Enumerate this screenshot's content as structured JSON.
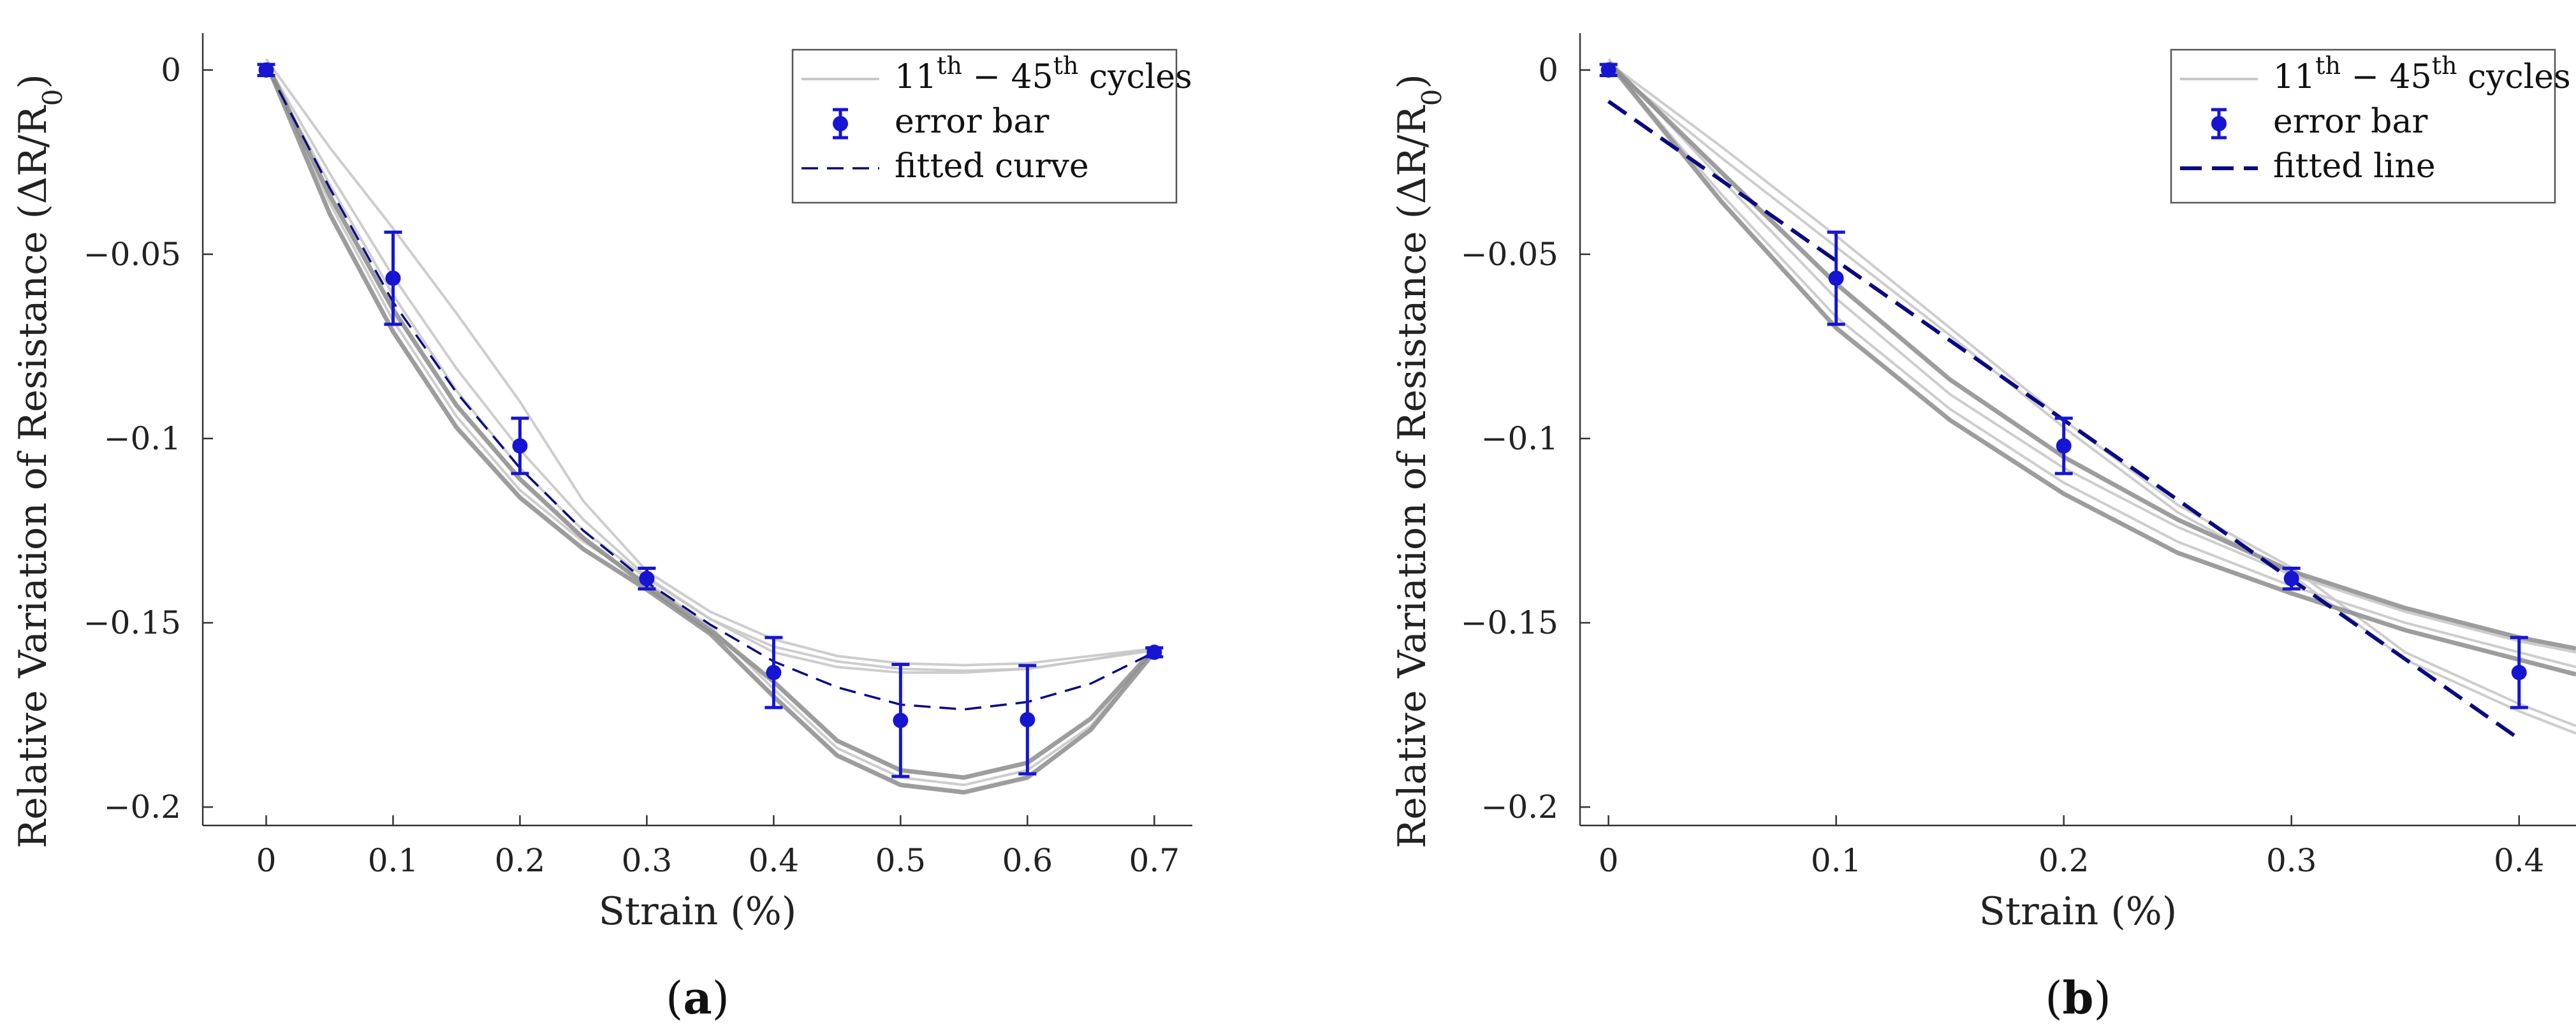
{
  "chart_data": [
    {
      "type": "line",
      "panel": "a",
      "panel_label": "a",
      "xlabel": "Strain (%)",
      "ylabel": "Relative Variation of Resistance (ΔR/R",
      "ylabel_sub": "0",
      "ylabel_close": ")",
      "xlim": [
        -0.05,
        0.73
      ],
      "ylim": [
        -0.205,
        0.01
      ],
      "xticks": [
        0,
        0.1,
        0.2,
        0.3,
        0.4,
        0.5,
        0.6,
        0.7
      ],
      "xtick_labels": [
        "0",
        "0.1",
        "0.2",
        "0.3",
        "0.4",
        "0.5",
        "0.6",
        "0.7"
      ],
      "yticks": [
        0,
        -0.05,
        -0.1,
        -0.15,
        -0.2
      ],
      "ytick_labels": [
        "0",
        "−0.05",
        "−0.1",
        "−0.15",
        "−0.2"
      ],
      "legend": {
        "position": "top-right",
        "cycles": {
          "pre": "11",
          "pre_sup": "th",
          "mid": " − 45",
          "mid_sup": "th",
          "post": " cycles"
        },
        "error_bar": "error bar",
        "fitted": "fitted curve"
      },
      "colors": {
        "cycles": "#c8c8c8",
        "cycles_dark": "#8c8c8c",
        "marker": "#1515d2",
        "fit": "#0a0a80"
      },
      "series": [
        {
          "name": "error bar",
          "x": [
            0,
            0.1,
            0.2,
            0.3,
            0.4,
            0.5,
            0.6,
            0.7
          ],
          "y": [
            0,
            -0.0565,
            -0.102,
            -0.138,
            -0.1635,
            -0.1765,
            -0.1763,
            -0.158
          ],
          "err": [
            0.0015,
            0.0125,
            0.0075,
            0.0028,
            0.0095,
            0.0152,
            0.0147,
            0.0012
          ]
        },
        {
          "name": "fitted curve",
          "style": "dashed",
          "x": [
            0.01,
            0.05,
            0.1,
            0.15,
            0.2,
            0.25,
            0.3,
            0.35,
            0.4,
            0.45,
            0.5,
            0.55,
            0.6,
            0.65,
            0.7
          ],
          "y": [
            -0.0055,
            -0.032,
            -0.063,
            -0.0875,
            -0.108,
            -0.125,
            -0.139,
            -0.1505,
            -0.1605,
            -0.1675,
            -0.1722,
            -0.1735,
            -0.1715,
            -0.1665,
            -0.158
          ]
        },
        {
          "name": "11th – 45th cycles",
          "curves": [
            {
              "x": [
                0,
                0.05,
                0.1,
                0.15,
                0.2,
                0.25,
                0.3,
                0.35,
                0.4,
                0.45,
                0.5,
                0.55,
                0.6,
                0.65,
                0.7
              ],
              "y": [
                0.002,
                -0.028,
                -0.056,
                -0.081,
                -0.103,
                -0.122,
                -0.1375,
                -0.149,
                -0.1565,
                -0.1605,
                -0.1625,
                -0.163,
                -0.1625,
                -0.16,
                -0.157
              ]
            },
            {
              "x": [
                0,
                0.05,
                0.1,
                0.15,
                0.2,
                0.25,
                0.3,
                0.35,
                0.4,
                0.45,
                0.5,
                0.55,
                0.6,
                0.65,
                0.7
              ],
              "y": [
                0.002,
                -0.036,
                -0.068,
                -0.094,
                -0.114,
                -0.128,
                -0.139,
                -0.151,
                -0.168,
                -0.184,
                -0.192,
                -0.194,
                -0.19,
                -0.178,
                -0.157
              ]
            },
            {
              "x": [
                0,
                0.05,
                0.1,
                0.15,
                0.2,
                0.25,
                0.3,
                0.35,
                0.4,
                0.45,
                0.5,
                0.55,
                0.6,
                0.65,
                0.7
              ],
              "y": [
                0.003,
                -0.021,
                -0.043,
                -0.066,
                -0.09,
                -0.117,
                -0.136,
                -0.147,
                -0.1545,
                -0.159,
                -0.161,
                -0.1615,
                -0.161,
                -0.159,
                -0.157
              ]
            },
            {
              "x": [
                0,
                0.05,
                0.1,
                0.15,
                0.2,
                0.25,
                0.3,
                0.35,
                0.4,
                0.45,
                0.5,
                0.55,
                0.6,
                0.65,
                0.7
              ],
              "y": [
                0.001,
                -0.031,
                -0.061,
                -0.087,
                -0.108,
                -0.125,
                -0.138,
                -0.149,
                -0.158,
                -0.162,
                -0.1635,
                -0.1635,
                -0.1625,
                -0.16,
                -0.1575
              ]
            },
            {
              "x": [
                0,
                0.05,
                0.1,
                0.15,
                0.2,
                0.25,
                0.3,
                0.35,
                0.4,
                0.45,
                0.5,
                0.55,
                0.6,
                0.65,
                0.7
              ],
              "y": [
                0.002,
                -0.039,
                -0.071,
                -0.097,
                -0.116,
                -0.13,
                -0.141,
                -0.153,
                -0.17,
                -0.186,
                -0.194,
                -0.196,
                -0.192,
                -0.179,
                -0.158
              ]
            },
            {
              "x": [
                0,
                0.05,
                0.1,
                0.15,
                0.2,
                0.25,
                0.3,
                0.35,
                0.4,
                0.45,
                0.5,
                0.55,
                0.6,
                0.65,
                0.7
              ],
              "y": [
                0.002,
                -0.034,
                -0.065,
                -0.091,
                -0.111,
                -0.127,
                -0.14,
                -0.152,
                -0.166,
                -0.182,
                -0.19,
                -0.192,
                -0.188,
                -0.176,
                -0.157
              ]
            }
          ]
        }
      ]
    },
    {
      "type": "line",
      "panel": "b",
      "panel_label": "b",
      "xlabel": "Strain (%)",
      "ylabel": "Relative Variation of Resistance (ΔR/R",
      "ylabel_sub": "0",
      "ylabel_close": ")",
      "xlim": [
        -0.0125,
        0.425
      ],
      "ylim": [
        -0.205,
        0.01
      ],
      "xticks": [
        0,
        0.1,
        0.2,
        0.3,
        0.4
      ],
      "xtick_labels": [
        "0",
        "0.1",
        "0.2",
        "0.3",
        "0.4"
      ],
      "yticks": [
        0,
        -0.05,
        -0.1,
        -0.15,
        -0.2
      ],
      "ytick_labels": [
        "0",
        "−0.05",
        "−0.1",
        "−0.15",
        "−0.2"
      ],
      "legend": {
        "position": "top-right",
        "cycles": {
          "pre": "11",
          "pre_sup": "th",
          "mid": " − 45",
          "mid_sup": "th",
          "post": " cycles"
        },
        "error_bar": "error bar",
        "fitted": "fitted line"
      },
      "colors": {
        "cycles": "#c8c8c8",
        "cycles_dark": "#8c8c8c",
        "marker": "#1515d2",
        "fit": "#0a0a80"
      },
      "series": [
        {
          "name": "error bar",
          "x": [
            0,
            0.1,
            0.2,
            0.3,
            0.4
          ],
          "y": [
            0,
            -0.0565,
            -0.102,
            -0.138,
            -0.1635
          ],
          "err": [
            0.0015,
            0.0125,
            0.0075,
            0.0028,
            0.0095
          ]
        },
        {
          "name": "fitted line",
          "style": "dashed",
          "x": [
            0,
            0.4
          ],
          "y": [
            -0.0085,
            -0.1815
          ]
        },
        {
          "name": "11th – 45th cycles",
          "curves": [
            {
              "x": [
                0,
                0.05,
                0.1,
                0.15,
                0.2,
                0.25,
                0.3,
                0.35,
                0.4,
                0.425
              ],
              "y": [
                0.002,
                -0.021,
                -0.045,
                -0.07,
                -0.095,
                -0.118,
                -0.135,
                -0.158,
                -0.172,
                -0.178
              ]
            },
            {
              "x": [
                0,
                0.05,
                0.1,
                0.15,
                0.2,
                0.25,
                0.3,
                0.35,
                0.4,
                0.425
              ],
              "y": [
                0.002,
                -0.034,
                -0.067,
                -0.092,
                -0.112,
                -0.128,
                -0.14,
                -0.15,
                -0.158,
                -0.162
              ]
            },
            {
              "x": [
                0,
                0.05,
                0.1,
                0.15,
                0.2,
                0.25,
                0.3,
                0.35,
                0.4,
                0.425
              ],
              "y": [
                0.003,
                -0.03,
                -0.062,
                -0.088,
                -0.108,
                -0.124,
                -0.137,
                -0.147,
                -0.155,
                -0.158
              ]
            },
            {
              "x": [
                0,
                0.05,
                0.1,
                0.15,
                0.2,
                0.25,
                0.3,
                0.35,
                0.4,
                0.425
              ],
              "y": [
                0.001,
                -0.024,
                -0.048,
                -0.072,
                -0.097,
                -0.12,
                -0.137,
                -0.16,
                -0.174,
                -0.18
              ]
            },
            {
              "x": [
                0,
                0.05,
                0.1,
                0.15,
                0.2,
                0.25,
                0.3,
                0.35,
                0.4,
                0.425
              ],
              "y": [
                0.002,
                -0.036,
                -0.07,
                -0.095,
                -0.115,
                -0.131,
                -0.142,
                -0.152,
                -0.16,
                -0.164
              ]
            },
            {
              "x": [
                0,
                0.05,
                0.1,
                0.15,
                0.2,
                0.25,
                0.3,
                0.35,
                0.4,
                0.425
              ],
              "y": [
                0.002,
                -0.028,
                -0.058,
                -0.084,
                -0.105,
                -0.122,
                -0.136,
                -0.146,
                -0.154,
                -0.157
              ]
            }
          ]
        }
      ]
    }
  ]
}
